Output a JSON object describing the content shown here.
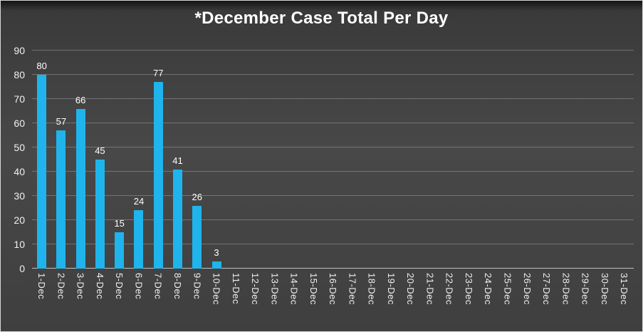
{
  "chart_data": {
    "type": "bar",
    "title": "*December Case Total Per Day",
    "categories": [
      "1-Dec",
      "2-Dec",
      "3-Dec",
      "4-Dec",
      "5-Dec",
      "6-Dec",
      "7-Dec",
      "8-Dec",
      "9-Dec",
      "10-Dec",
      "11-Dec",
      "12-Dec",
      "13-Dec",
      "14-Dec",
      "15-Dec",
      "16-Dec",
      "17-Dec",
      "18-Dec",
      "19-Dec",
      "20-Dec",
      "21-Dec",
      "22-Dec",
      "23-Dec",
      "24-Dec",
      "25-Dec",
      "26-Dec",
      "27-Dec",
      "28-Dec",
      "29-Dec",
      "30-Dec",
      "31-Dec"
    ],
    "values": [
      80,
      57,
      66,
      45,
      15,
      24,
      77,
      41,
      26,
      3,
      null,
      null,
      null,
      null,
      null,
      null,
      null,
      null,
      null,
      null,
      null,
      null,
      null,
      null,
      null,
      null,
      null,
      null,
      null,
      null,
      null
    ],
    "xlabel": "",
    "ylabel": "",
    "ylim": [
      0,
      90
    ],
    "yticks": [
      0,
      10,
      20,
      30,
      40,
      50,
      60,
      70,
      80,
      90
    ],
    "grid": true,
    "legend": false,
    "data_labels": true
  },
  "colors": {
    "background": "#414141",
    "bar": "#1fb4ec",
    "grid": "#9b9b9b",
    "axis_line": "#c8c8c8",
    "title_text": "#ffffff",
    "axis_text": "#f1f1f1",
    "data_label_text": "#ffffff"
  }
}
